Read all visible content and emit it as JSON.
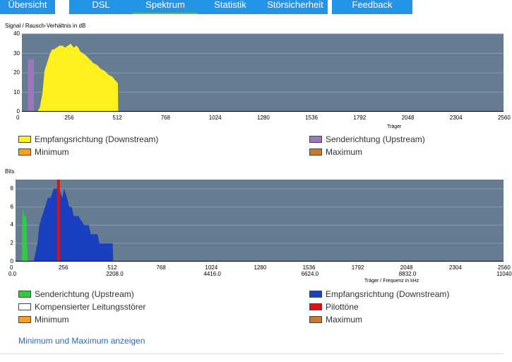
{
  "tabs": [
    {
      "label": "Übersicht",
      "active": false
    },
    {
      "label": "DSL",
      "active": false
    },
    {
      "label": "Spektrum",
      "active": true
    },
    {
      "label": "Statistik",
      "active": false
    },
    {
      "label": "Störsicherheit",
      "active": false
    },
    {
      "label": "Feedback",
      "active": false
    }
  ],
  "colors": {
    "tab": "#2494e6",
    "active_underline": "#59c74c",
    "plot_bg": "#667c93",
    "downstream": "#fff01e",
    "upstream_snr": "#9a78be",
    "minimum": "#f7a020",
    "maximum": "#c87832",
    "upstream_bits": "#2ecc40",
    "downstream_bits": "#1a3fc0",
    "pilot": "#e01010",
    "kompensiert": "#ffffff"
  },
  "chart1": {
    "title": "Signal / Rausch-Verhältnis in dB",
    "xlabel": "Träger",
    "chart_data": {
      "type": "area",
      "title": "Signal / Rausch-Verhältnis in dB",
      "xlabel": "Träger",
      "ylabel": "Signal / Rausch-Verhältnis in dB",
      "xlim": [
        0,
        2560
      ],
      "ylim": [
        0,
        40
      ],
      "x_ticks": [
        0,
        256,
        512,
        768,
        1024,
        1280,
        1536,
        1792,
        2048,
        2304,
        2560
      ],
      "y_ticks": [
        0,
        10,
        20,
        30,
        40
      ],
      "series": [
        {
          "name": "Senderichtung (Upstream)",
          "type": "bar",
          "x_range": [
            32,
            64
          ],
          "value": 27
        },
        {
          "name": "Empfangsrichtung (Downstream)",
          "type": "area",
          "x": [
            80,
            95,
            110,
            120,
            130,
            140,
            150,
            160,
            170,
            185,
            200,
            215,
            230,
            245,
            260,
            275,
            290,
            300,
            310,
            325,
            340,
            360,
            380,
            400,
            420,
            440,
            460,
            480,
            490,
            495,
            500,
            505,
            510,
            512
          ],
          "y": [
            0,
            2,
            10,
            21,
            24,
            27,
            30,
            32,
            32,
            33,
            34,
            34,
            33,
            34,
            35,
            33,
            34,
            33,
            31,
            30,
            29,
            27,
            25,
            24,
            22,
            21,
            19,
            18,
            17,
            16,
            16,
            15,
            15,
            0
          ]
        }
      ]
    },
    "legend": [
      {
        "label": "Empfangsrichtung (Downstream)",
        "color": "#fff01e"
      },
      {
        "label": "Senderichtung (Upstream)",
        "color": "#9a78be"
      },
      {
        "label": "Minimum",
        "color": "#f7a020"
      },
      {
        "label": "Maximum",
        "color": "#c87832"
      }
    ]
  },
  "chart2": {
    "title": "Bits",
    "xlabel": "Träger / Frequenz in kHz",
    "chart_data": {
      "type": "area",
      "title": "Bits",
      "xlabel": "Träger / Frequenz in kHz",
      "ylabel": "Bits",
      "xlim": [
        0,
        2560
      ],
      "ylim": [
        0,
        9
      ],
      "x_ticks": [
        0,
        256,
        512,
        768,
        1024,
        1280,
        1536,
        1792,
        2048,
        2304,
        2560
      ],
      "x_freq_labels": [
        "0.0",
        "2208.0",
        "4416.0",
        "6624.0",
        "8832.0",
        "11040"
      ],
      "y_ticks": [
        0,
        2,
        4,
        6,
        8
      ],
      "series": [
        {
          "name": "Senderichtung (Upstream)",
          "type": "area",
          "x": [
            32,
            36,
            40,
            44,
            48,
            52,
            56,
            60,
            64
          ],
          "y": [
            0,
            5,
            6,
            5,
            5,
            5,
            5,
            2,
            0
          ]
        },
        {
          "name": "Empfangsrichtung (Downstream)",
          "type": "area",
          "x": [
            95,
            105,
            115,
            125,
            140,
            155,
            170,
            185,
            200,
            212,
            228,
            245,
            255,
            270,
            282,
            295,
            305,
            330,
            360,
            385,
            395,
            410,
            420,
            430,
            440,
            460,
            480,
            500,
            510,
            512
          ],
          "y": [
            0,
            1,
            2,
            4,
            5,
            6,
            7,
            7,
            8,
            8,
            8,
            7,
            8,
            7,
            6,
            6,
            5,
            5,
            4,
            4,
            3,
            3,
            3,
            3,
            2,
            2,
            2,
            2,
            2,
            0
          ]
        },
        {
          "name": "Pilottöne",
          "type": "line",
          "x": [
            225
          ],
          "y": [
            9
          ]
        }
      ]
    },
    "legend": [
      {
        "label": "Senderichtung (Upstream)",
        "color": "#2ecc40"
      },
      {
        "label": "Empfangsrichtung (Downstream)",
        "color": "#1a3fc0"
      },
      {
        "label": "Kompensierter Leitungsstörer",
        "color": "#ffffff"
      },
      {
        "label": "Pilottöne",
        "color": "#e01010"
      },
      {
        "label": "Minimum",
        "color": "#f7a020"
      },
      {
        "label": "Maximum",
        "color": "#c87832"
      }
    ]
  },
  "link": "Minimum und Maximum anzeigen"
}
